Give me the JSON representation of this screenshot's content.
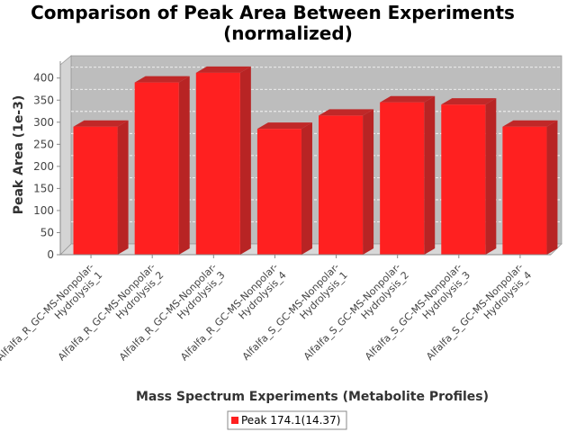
{
  "chart_data": {
    "type": "bar",
    "title": "Comparison of Peak Area Between Experiments",
    "subtitle": "(normalized)",
    "xlabel": "Mass Spectrum Experiments (Metabolite Profiles)",
    "ylabel": "Peak Area (1e-3)",
    "ylim": [
      0,
      430
    ],
    "yticks": [
      0,
      50,
      100,
      150,
      200,
      250,
      300,
      350,
      400
    ],
    "categories": [
      [
        "Alfalfa_R_GC-MS-Nonpolar-",
        "Hydrolysis_1"
      ],
      [
        "Alfalfa_R_GC-MS-Nonpolar-",
        "Hydrolysis_2"
      ],
      [
        "Alfalfa_R_GC-MS-Nonpolar-",
        "Hydrolysis_3"
      ],
      [
        "Alfalfa_R_GC-MS-Nonpolar-",
        "Hydrolysis_4"
      ],
      [
        "Alfalfa_S_GC-MS-Nonpolar-",
        "Hydrolysis_1"
      ],
      [
        "Alfalfa_S_GC-MS-Nonpolar-",
        "Hydrolysis_2"
      ],
      [
        "Alfalfa_S_GC-MS-Nonpolar-",
        "Hydrolysis_3"
      ],
      [
        "Alfalfa_S_GC-MS-Nonpolar-",
        "Hydrolysis_4"
      ]
    ],
    "series": [
      {
        "name": "Peak 174.1(14.37)",
        "color": "#ff2020",
        "values": [
          290,
          390,
          412,
          285,
          315,
          345,
          340,
          290
        ]
      }
    ],
    "grid": true,
    "legend_position": "bottom"
  }
}
